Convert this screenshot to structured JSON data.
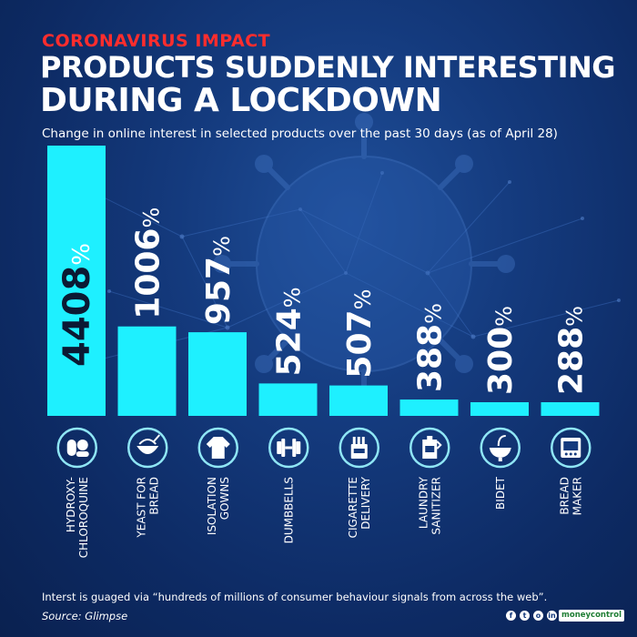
{
  "header": {
    "kicker": "CORONAVIRUS IMPACT",
    "title_line1": "PRODUCTS SUDDENLY INTERESTING",
    "title_line2": "DURING A LOCKDOWN",
    "subtitle": "Change in online interest in selected products over the past 30 days (as of April 28)"
  },
  "footer": {
    "note": "Interst is guaged via “hundreds of millions of consumer behaviour signals from across the web”.",
    "source": "Source: Glimpse",
    "brand": "moneycontrol"
  },
  "social_icons": [
    {
      "name": "facebook-icon",
      "glyph": "f"
    },
    {
      "name": "twitter-icon",
      "glyph": "t"
    },
    {
      "name": "instagram-icon",
      "glyph": "o"
    },
    {
      "name": "linkedin-icon",
      "glyph": "in"
    }
  ],
  "colors": {
    "background": "#143a7d",
    "bar": "#1ef0ff",
    "kicker": "#ff2d2d",
    "text": "#ffffff",
    "icon_ring": "#8fe6f5"
  },
  "chart_data": {
    "type": "bar",
    "title": "",
    "xlabel": "",
    "ylabel": "",
    "value_suffix": "%",
    "categories": [
      "HYDROXY- CHLOROQUINE",
      "YEAST FOR BREAD",
      "ISOLATION GOWNS",
      "DUMBBELLS",
      "CIGARETTE DELIVERY",
      "LAUNDRY SANITIZER",
      "BIDET",
      "BREAD MAKER"
    ],
    "category_lines": [
      [
        "HYDROXY-",
        "CHLOROQUINE"
      ],
      [
        "YEAST FOR",
        "BREAD"
      ],
      [
        "ISOLATION",
        "GOWNS"
      ],
      [
        "DUMBBELLS"
      ],
      [
        "CIGARETTE",
        "DELIVERY"
      ],
      [
        "LAUNDRY",
        "SANITIZER"
      ],
      [
        "BIDET"
      ],
      [
        "BREAD",
        "MAKER"
      ]
    ],
    "icons": [
      "pill-icon",
      "bowl-icon",
      "gown-icon",
      "dumbbell-icon",
      "cigarette-box-icon",
      "detergent-bottle-icon",
      "bidet-icon",
      "bread-maker-icon"
    ],
    "values": [
      4408,
      1006,
      957,
      524,
      507,
      388,
      300,
      288
    ],
    "value_labels": [
      "4408",
      "1006",
      "957",
      "524",
      "507",
      "388",
      "300",
      "288"
    ],
    "grid": false,
    "legend": "none"
  }
}
